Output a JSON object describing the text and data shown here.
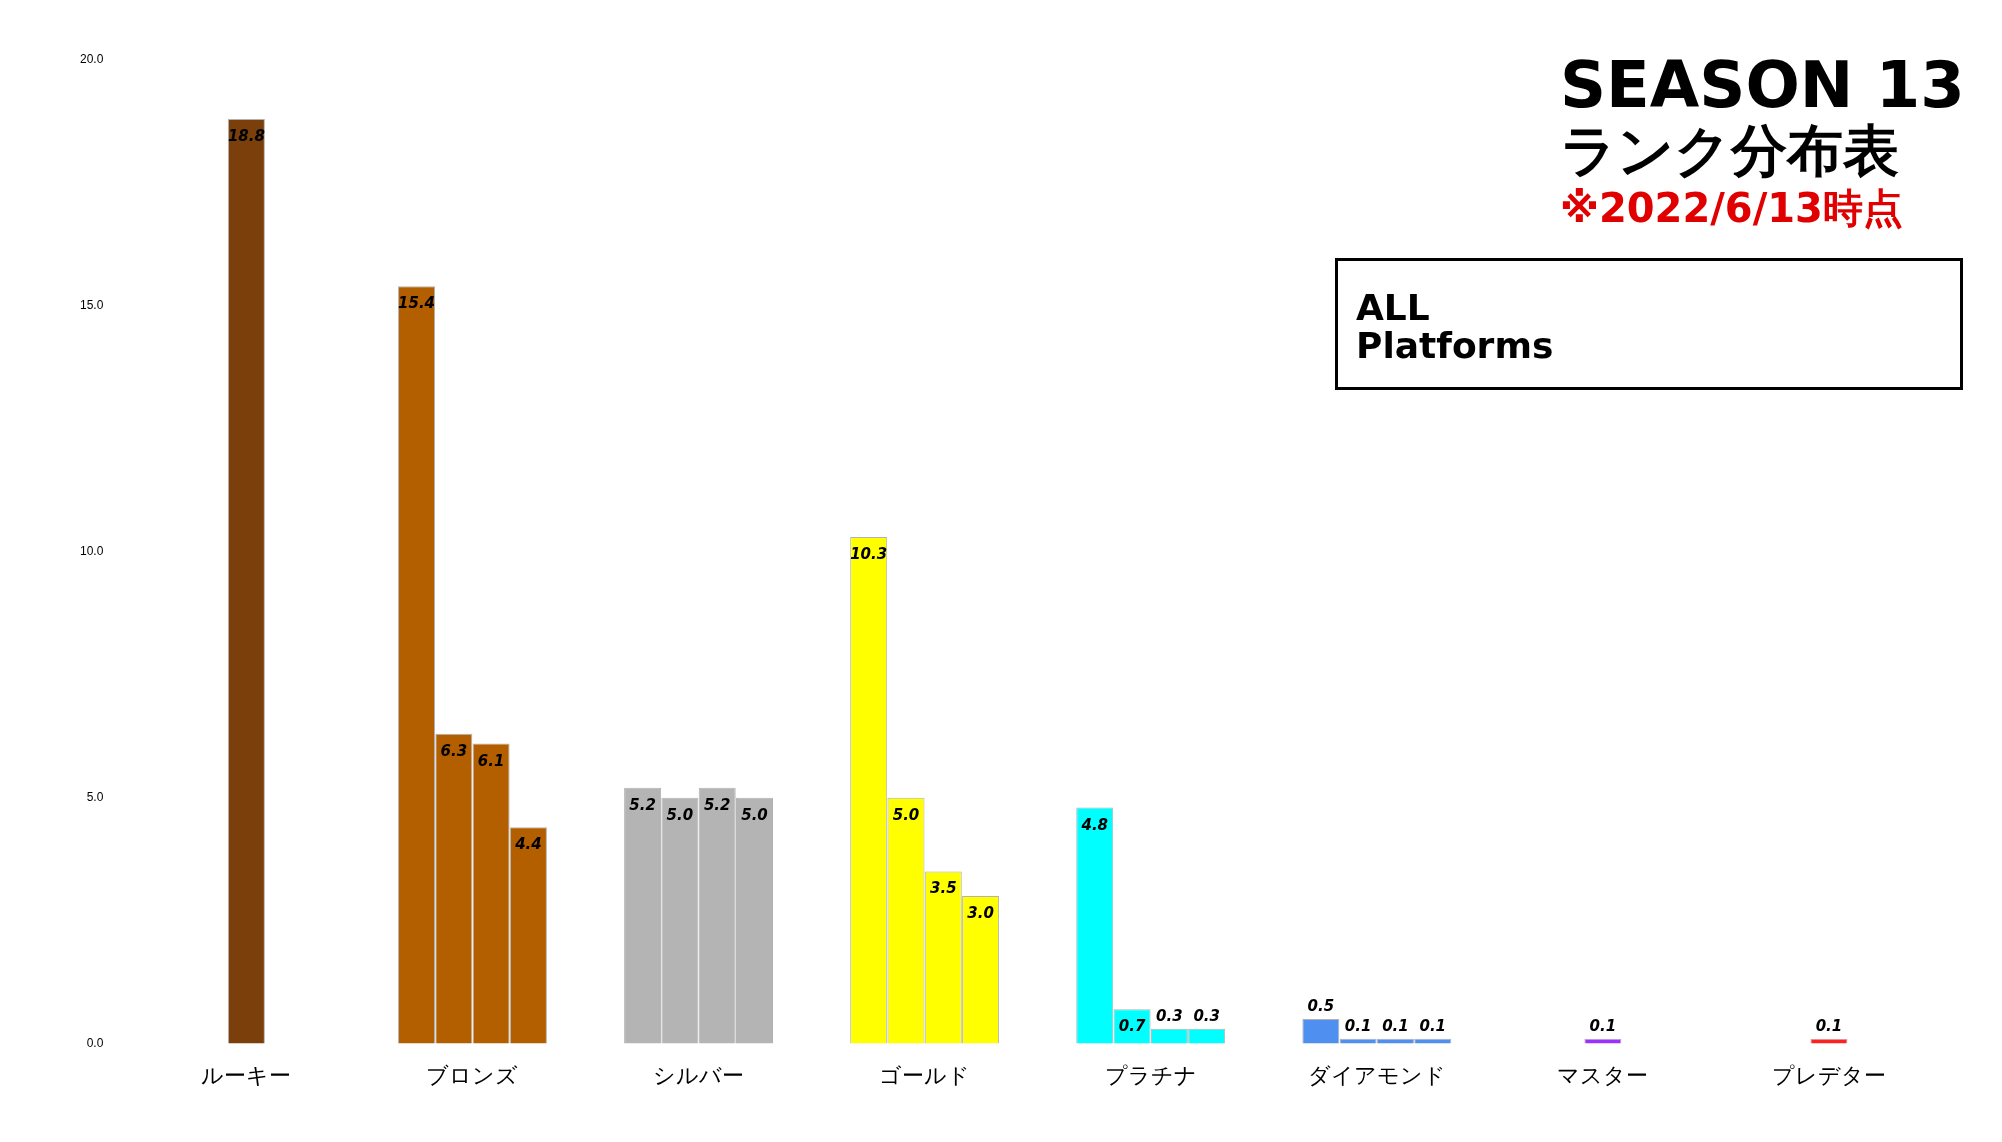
{
  "chart_data": {
    "type": "bar",
    "title": "SEASON 13",
    "subtitle": "ランク分布表",
    "annotations": [
      "※2022/6/13時点",
      "ALL Platforms"
    ],
    "categories": [
      "ルーキー",
      "ブロンズ",
      "シルバー",
      "ゴールド",
      "プラチナ",
      "ダイアモンド",
      "マスター",
      "プレデター"
    ],
    "series": [
      {
        "colors": [
          "#7a3f0a",
          "#b35f00",
          "#b4b4b4",
          "#ffff00",
          "#00ffff",
          "#4f8ff0",
          "#9b30ff",
          "#ff2020"
        ],
        "values": [
          18.8,
          15.4,
          5.2,
          10.3,
          4.8,
          0.5,
          0.1,
          0.1
        ],
        "value_labels": [
          "18.8",
          "15.4",
          "5.2",
          "10.3",
          "4.8",
          "0.5",
          "0.1",
          "0.1"
        ]
      },
      {
        "colors": [
          "#7a3f0a",
          "#b35f00",
          "#b4b4b4",
          "#ffff00",
          "#00ffff",
          "#4f8ff0",
          "#9b30ff",
          "#ff2020"
        ],
        "values": [
          null,
          6.3,
          5.0,
          5.0,
          0.7,
          0.1,
          null,
          null
        ],
        "value_labels": [
          null,
          "6.3",
          "5.0",
          "5.0",
          "0.7",
          "0.1",
          null,
          null
        ]
      },
      {
        "colors": [
          "#7a3f0a",
          "#b35f00",
          "#b4b4b4",
          "#ffff00",
          "#00ffff",
          "#4f8ff0",
          "#9b30ff",
          "#ff2020"
        ],
        "values": [
          null,
          6.1,
          5.2,
          3.5,
          0.3,
          0.1,
          null,
          null
        ],
        "value_labels": [
          null,
          "6.1",
          "5.2",
          "3.5",
          "0.3",
          "0.1",
          null,
          null
        ]
      },
      {
        "colors": [
          "#7a3f0a",
          "#b35f00",
          "#b4b4b4",
          "#ffff00",
          "#00ffff",
          "#4f8ff0",
          "#9b30ff",
          "#ff2020"
        ],
        "values": [
          null,
          4.4,
          5.0,
          3.0,
          0.3,
          0.1,
          null,
          null
        ],
        "value_labels": [
          null,
          "4.4",
          "5.0",
          "3.0",
          "0.3",
          "0.1",
          null,
          null
        ]
      }
    ],
    "ylim": [
      0,
      20
    ],
    "yticks": [
      {
        "value": 0,
        "label": "0.0"
      },
      {
        "value": 5,
        "label": "5.0"
      },
      {
        "value": 10,
        "label": "10.0"
      },
      {
        "value": 15,
        "label": "15.0"
      },
      {
        "value": 20,
        "label": "20.0"
      }
    ],
    "grid": false,
    "legend": false
  }
}
